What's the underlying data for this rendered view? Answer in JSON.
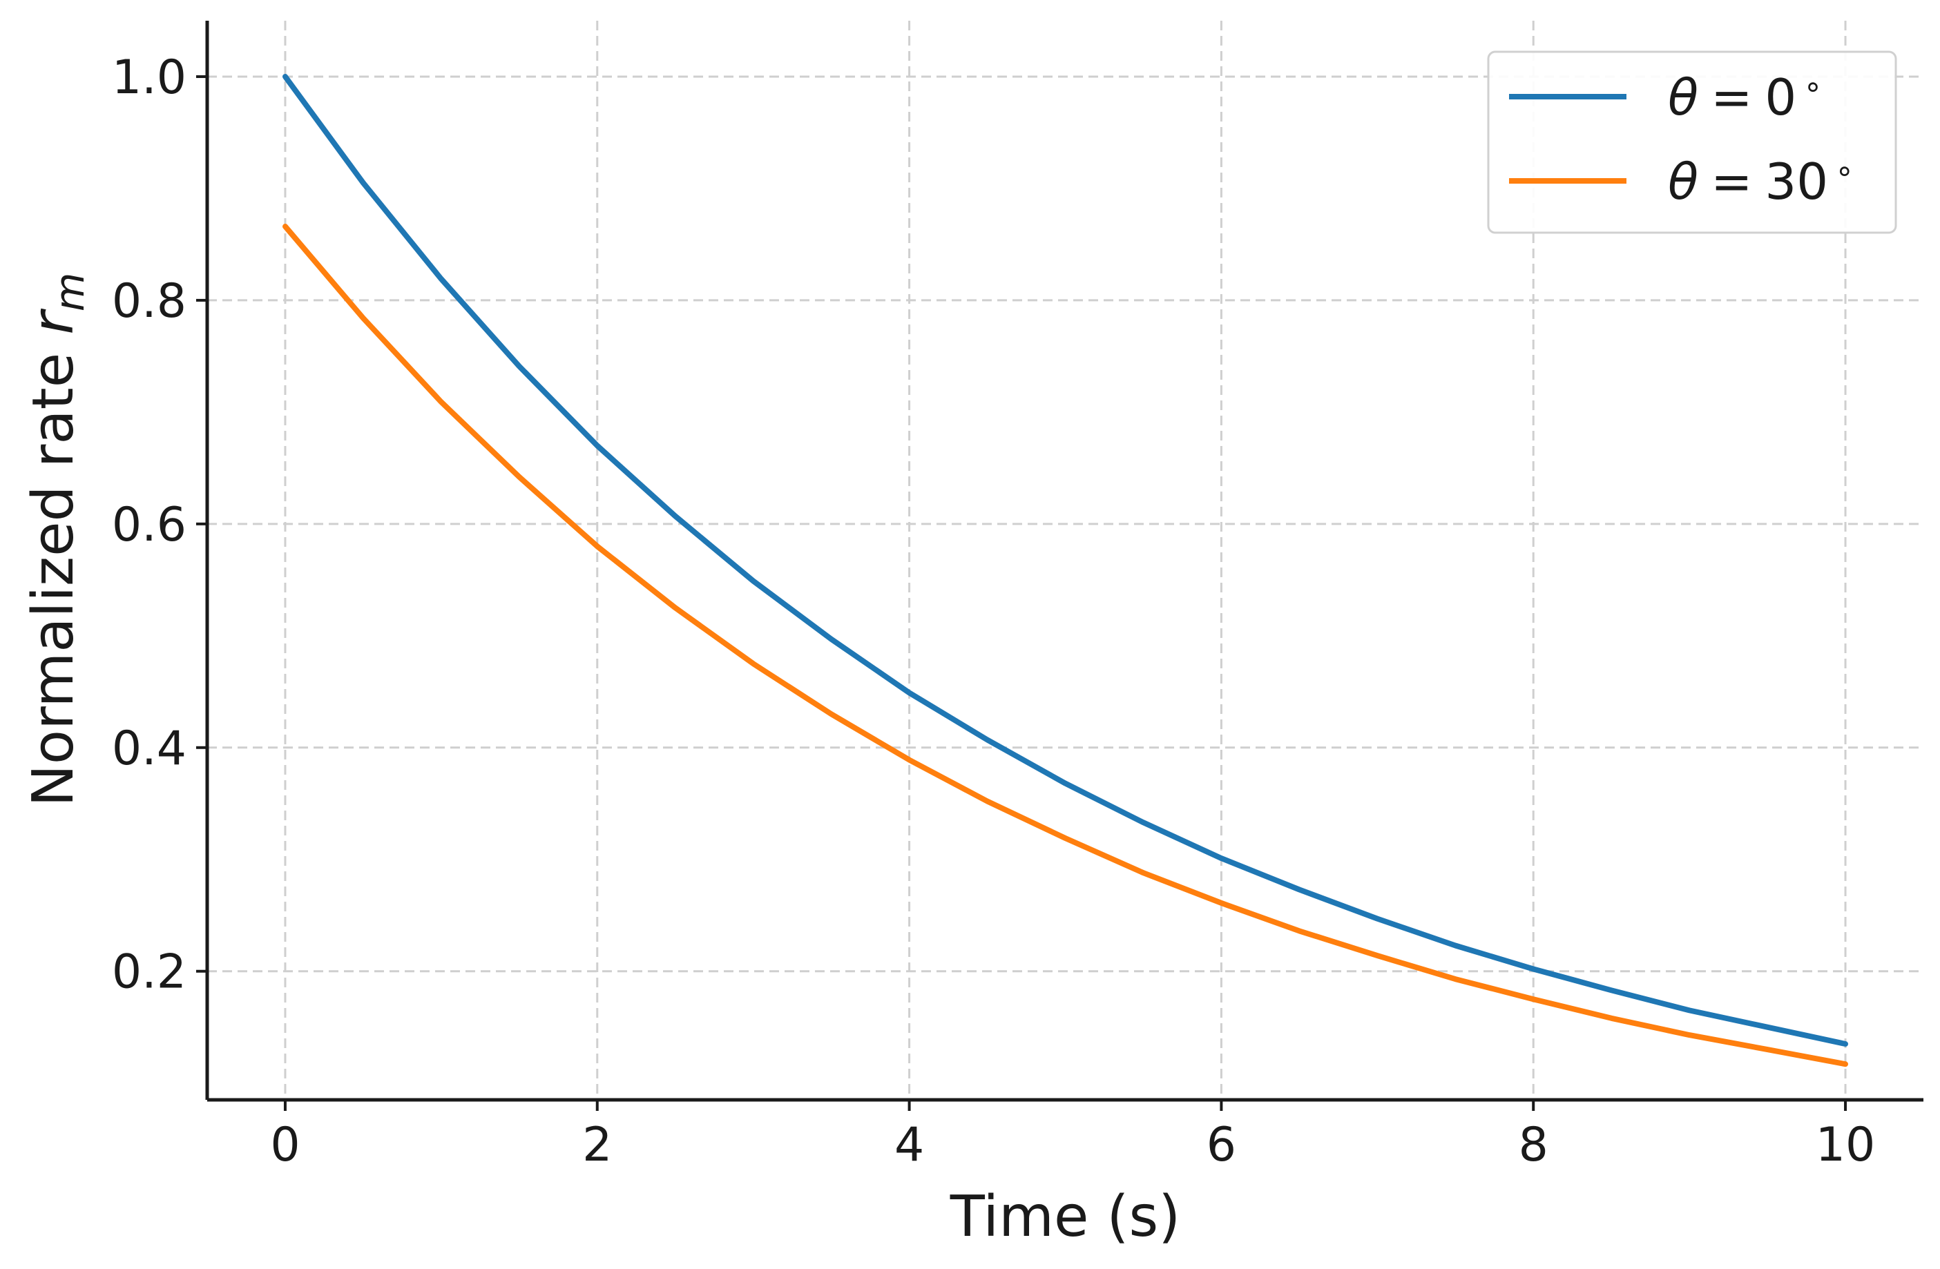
{
  "chart_data": {
    "type": "line",
    "title": "",
    "xlabel": "Time (s)",
    "ylabel": {
      "main": "Normalized rate",
      "symbol": "r",
      "subscript": "m"
    },
    "xlim": [
      -0.5,
      10.5
    ],
    "ylim": [
      0.085,
      1.05
    ],
    "xticks": [
      0,
      2,
      4,
      6,
      8,
      10
    ],
    "xtick_labels": [
      "0",
      "2",
      "4",
      "6",
      "8",
      "10"
    ],
    "yticks": [
      0.2,
      0.4,
      0.6,
      0.8,
      1.0
    ],
    "ytick_labels": [
      "0.2",
      "0.4",
      "0.6",
      "0.8",
      "1.0"
    ],
    "grid": true,
    "legend_position": "top-right",
    "x": [
      0,
      0.5,
      1,
      1.5,
      2,
      2.5,
      3,
      3.5,
      4,
      4.5,
      5,
      5.5,
      6,
      6.5,
      7,
      7.5,
      8,
      8.5,
      9,
      9.5,
      10
    ],
    "series": [
      {
        "name": "θ = 0°",
        "legend": {
          "symbol": "θ",
          "eq": "=",
          "value": "0",
          "unit": "∘"
        },
        "color": "#1f77b4",
        "values": [
          1.0,
          0.905,
          0.819,
          0.741,
          0.67,
          0.607,
          0.549,
          0.497,
          0.449,
          0.407,
          0.368,
          0.333,
          0.301,
          0.273,
          0.247,
          0.223,
          0.202,
          0.183,
          0.165,
          0.15,
          0.135
        ]
      },
      {
        "name": "θ = 30°",
        "legend": {
          "symbol": "θ",
          "eq": "=",
          "value": "30",
          "unit": "∘"
        },
        "color": "#ff7f0e",
        "values": [
          0.866,
          0.784,
          0.709,
          0.642,
          0.58,
          0.525,
          0.475,
          0.43,
          0.389,
          0.352,
          0.319,
          0.288,
          0.261,
          0.236,
          0.214,
          0.193,
          0.175,
          0.158,
          0.143,
          0.13,
          0.117
        ]
      }
    ]
  }
}
